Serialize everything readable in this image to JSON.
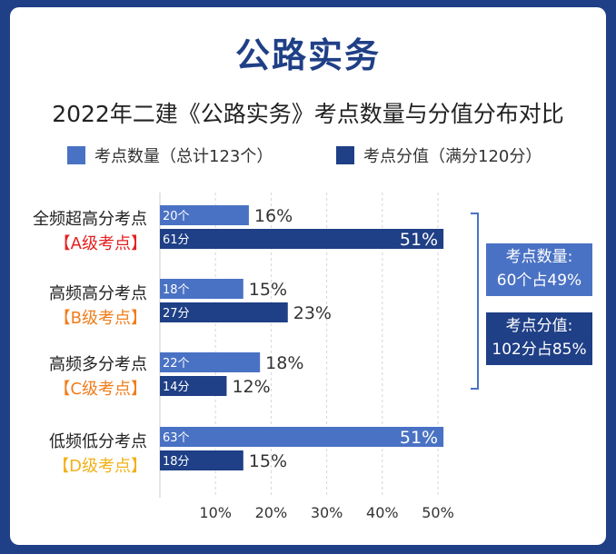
{
  "title": "公路实务",
  "subtitle": "2022年二建《公路实务》考点数量与分值分布对比",
  "colors": {
    "background": "#1f3f86",
    "count_series": "#4a72c4",
    "score_series": "#1f3f86",
    "level_a": "#e62020",
    "level_b": "#f07d1a",
    "level_c": "#f07d1a",
    "level_d": "#f2b018"
  },
  "summary": {
    "count_label": "考点数量:",
    "count_value": "60个占49%",
    "score_label": "考点分值:",
    "score_value": "102分占85%"
  },
  "chart_data": {
    "type": "bar",
    "orientation": "horizontal",
    "categories": [
      {
        "name": "全频超高分考点",
        "level": "【A级考点】"
      },
      {
        "name": "高频高分考点",
        "level": "【B级考点】"
      },
      {
        "name": "高频多分考点",
        "level": "【C级考点】"
      },
      {
        "name": "低频低分考点",
        "level": "【D级考点】"
      }
    ],
    "series": [
      {
        "name": "考点数量（总计123个）",
        "values": [
          16,
          15,
          18,
          51
        ],
        "bar_labels": [
          "20个",
          "18个",
          "22个",
          "63个"
        ],
        "value_labels": [
          "16%",
          "15%",
          "18%",
          "51%"
        ]
      },
      {
        "name": "考点分值（满分120分）",
        "values": [
          51,
          23,
          12,
          15
        ],
        "bar_labels": [
          "61分",
          "27分",
          "14分",
          "18分"
        ],
        "value_labels": [
          "51%",
          "23%",
          "12%",
          "15%"
        ]
      }
    ],
    "xlim": [
      0,
      55
    ],
    "xticks": [
      10,
      20,
      30,
      40,
      50
    ],
    "xtick_labels": [
      "10%",
      "20%",
      "30%",
      "40%",
      "50%"
    ],
    "grid": true,
    "legend": "top"
  }
}
